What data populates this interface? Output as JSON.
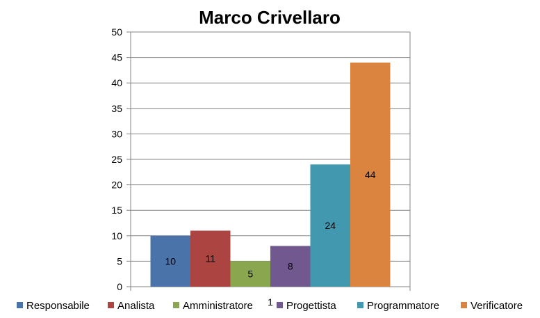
{
  "chart_data": {
    "type": "bar",
    "title": "Marco Crivellaro",
    "categories": [
      "1"
    ],
    "series": [
      {
        "name": "Responsabile",
        "values": [
          10
        ],
        "color": "#4A73AA"
      },
      {
        "name": "Analista",
        "values": [
          11
        ],
        "color": "#AC4542"
      },
      {
        "name": "Amministratore",
        "values": [
          5
        ],
        "color": "#8AA64E"
      },
      {
        "name": "Progettista",
        "values": [
          8
        ],
        "color": "#71588F"
      },
      {
        "name": "Programmatore",
        "values": [
          24
        ],
        "color": "#4198AF"
      },
      {
        "name": "Verificatore",
        "values": [
          44
        ],
        "color": "#DB8440"
      }
    ],
    "xlabel": "",
    "ylabel": "",
    "ylim": [
      0,
      50
    ],
    "yticks": [
      0,
      5,
      10,
      15,
      20,
      25,
      30,
      35,
      40,
      45,
      50
    ],
    "grid": true,
    "legend": "bottom",
    "data_labels": true
  }
}
